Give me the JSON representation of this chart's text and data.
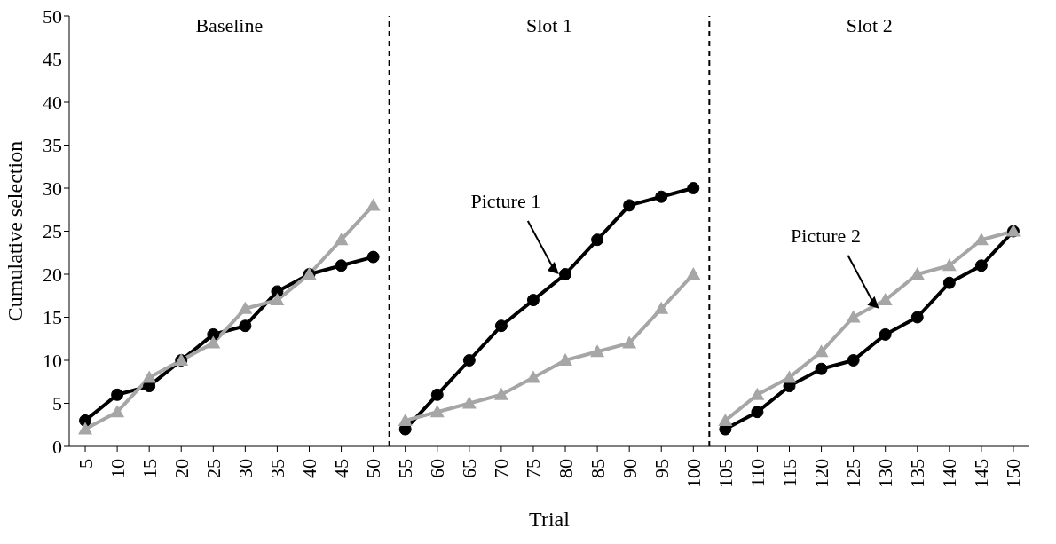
{
  "chart_data": {
    "type": "line",
    "xlabel": "Trial",
    "ylabel": "Cumulative selection",
    "xlim": [
      2.5,
      152.5
    ],
    "xticks": [
      5,
      10,
      15,
      20,
      25,
      30,
      35,
      40,
      45,
      50,
      55,
      60,
      65,
      70,
      75,
      80,
      85,
      90,
      95,
      100,
      105,
      110,
      115,
      120,
      125,
      130,
      135,
      140,
      145,
      150
    ],
    "ylim": [
      0,
      50
    ],
    "yticks": [
      0,
      5,
      10,
      15,
      20,
      25,
      30,
      35,
      40,
      45,
      50
    ],
    "line_style": "solid",
    "series": [
      {
        "color": "#000000",
        "marker": "circle",
        "x": [
          5,
          10,
          15,
          20,
          25,
          30,
          35,
          40,
          45,
          50
        ],
        "values": [
          3,
          6,
          7,
          10,
          13,
          14,
          18,
          20,
          21,
          22
        ]
      },
      {
        "color": "#a6a6a6",
        "marker": "triangle",
        "x": [
          5,
          10,
          15,
          20,
          25,
          30,
          35,
          40,
          45,
          50
        ],
        "values": [
          2,
          4,
          8,
          10,
          12,
          16,
          17,
          20,
          24,
          28
        ]
      },
      {
        "color": "#000000",
        "marker": "circle",
        "x": [
          55,
          60,
          65,
          70,
          75,
          80,
          85,
          90,
          95,
          100
        ],
        "values": [
          2,
          6,
          10,
          14,
          17,
          20,
          24,
          28,
          29,
          30
        ]
      },
      {
        "color": "#a6a6a6",
        "marker": "triangle",
        "x": [
          55,
          60,
          65,
          70,
          75,
          80,
          85,
          90,
          95,
          100
        ],
        "values": [
          3,
          4,
          5,
          6,
          8,
          10,
          11,
          12,
          16,
          20
        ]
      },
      {
        "color": "#000000",
        "marker": "circle",
        "x": [
          105,
          110,
          115,
          120,
          125,
          130,
          135,
          140,
          145,
          150
        ],
        "values": [
          2,
          4,
          7,
          9,
          10,
          13,
          15,
          19,
          21,
          25
        ]
      },
      {
        "color": "#a6a6a6",
        "marker": "triangle",
        "x": [
          105,
          110,
          115,
          120,
          125,
          130,
          135,
          140,
          145,
          150
        ],
        "values": [
          3,
          6,
          8,
          11,
          15,
          17,
          20,
          21,
          24,
          25
        ]
      }
    ],
    "ref_lines": [
      {
        "axis": "x",
        "value": 52.5,
        "color": "#000000",
        "line_style": "dashed"
      },
      {
        "axis": "x",
        "value": 102.5,
        "color": "#000000",
        "line_style": "dashed"
      }
    ],
    "annotations": [
      "Baseline",
      "Slot 1",
      "Slot 2",
      {
        "text": "Picture 1",
        "x": 79,
        "y": 20
      },
      {
        "text": "Picture 2",
        "x": 129,
        "y": 16
      }
    ]
  }
}
